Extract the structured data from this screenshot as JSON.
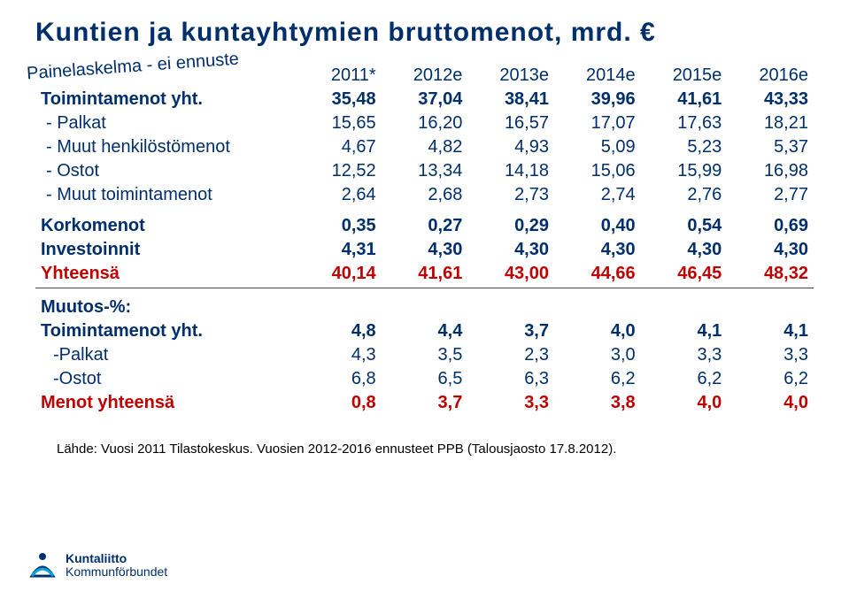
{
  "title_color": "#002f6c",
  "badge_color": "#002f6c",
  "text_color": "#002f6c",
  "yhteensa_color": "#c00000",
  "menot_color": "#c00000",
  "title": "Kuntien ja kuntayhtymien bruttomenot, mrd. €",
  "badge": "Painelaskelma - ei ennuste",
  "columns": [
    "2011*",
    "2012e",
    "2013e",
    "2014e",
    "2015e",
    "2016e"
  ],
  "section1": [
    {
      "label": "Toimintamenot yht.",
      "vals": [
        "35,48",
        "37,04",
        "38,41",
        "39,96",
        "41,61",
        "43,33"
      ],
      "bold": true
    },
    {
      "label": "- Palkat",
      "vals": [
        "15,65",
        "16,20",
        "16,57",
        "17,07",
        "17,63",
        "18,21"
      ],
      "indent": true
    },
    {
      "label": "- Muut henkilöstömenot",
      "vals": [
        "4,67",
        "4,82",
        "4,93",
        "5,09",
        "5,23",
        "5,37"
      ],
      "indent": true
    },
    {
      "label": "- Ostot",
      "vals": [
        "12,52",
        "13,34",
        "14,18",
        "15,06",
        "15,99",
        "16,98"
      ],
      "indent": true
    },
    {
      "label": "- Muut toimintamenot",
      "vals": [
        "2,64",
        "2,68",
        "2,73",
        "2,74",
        "2,76",
        "2,77"
      ],
      "indent": true
    }
  ],
  "section2": [
    {
      "label": "Korkomenot",
      "vals": [
        "0,35",
        "0,27",
        "0,29",
        "0,40",
        "0,54",
        "0,69"
      ],
      "bold": true
    },
    {
      "label": "Investoinnit",
      "vals": [
        "4,31",
        "4,30",
        "4,30",
        "4,30",
        "4,30",
        "4,30"
      ],
      "bold": true
    }
  ],
  "yhteensa": {
    "label": "Yhteensä",
    "vals": [
      "40,14",
      "41,61",
      "43,00",
      "44,66",
      "46,45",
      "48,32"
    ]
  },
  "section3_title": "Muutos-%:",
  "section3": [
    {
      "label": "Toimintamenot yht.",
      "vals": [
        "4,8",
        "4,4",
        "3,7",
        "4,0",
        "4,1",
        "4,1"
      ],
      "bold": true
    },
    {
      "label": "-Palkat",
      "vals": [
        "4,3",
        "3,5",
        "2,3",
        "3,0",
        "3,3",
        "3,3"
      ],
      "indent2": true
    },
    {
      "label": "-Ostot",
      "vals": [
        "6,8",
        "6,5",
        "6,3",
        "6,2",
        "6,2",
        "6,2"
      ],
      "indent2": true
    }
  ],
  "menot": {
    "label": "Menot yhteensä",
    "vals": [
      "0,8",
      "3,7",
      "3,3",
      "3,8",
      "4,0",
      "4,0"
    ]
  },
  "source": "Lähde: Vuosi 2011 Tilastokeskus. Vuosien 2012-2016 ennusteet PPB (Talousjaosto 17.8.2012).",
  "logo": {
    "line1": "Kuntaliitto",
    "line2": "Kommunförbundet",
    "color": "#002f6c",
    "accent": "#00a3e0"
  }
}
